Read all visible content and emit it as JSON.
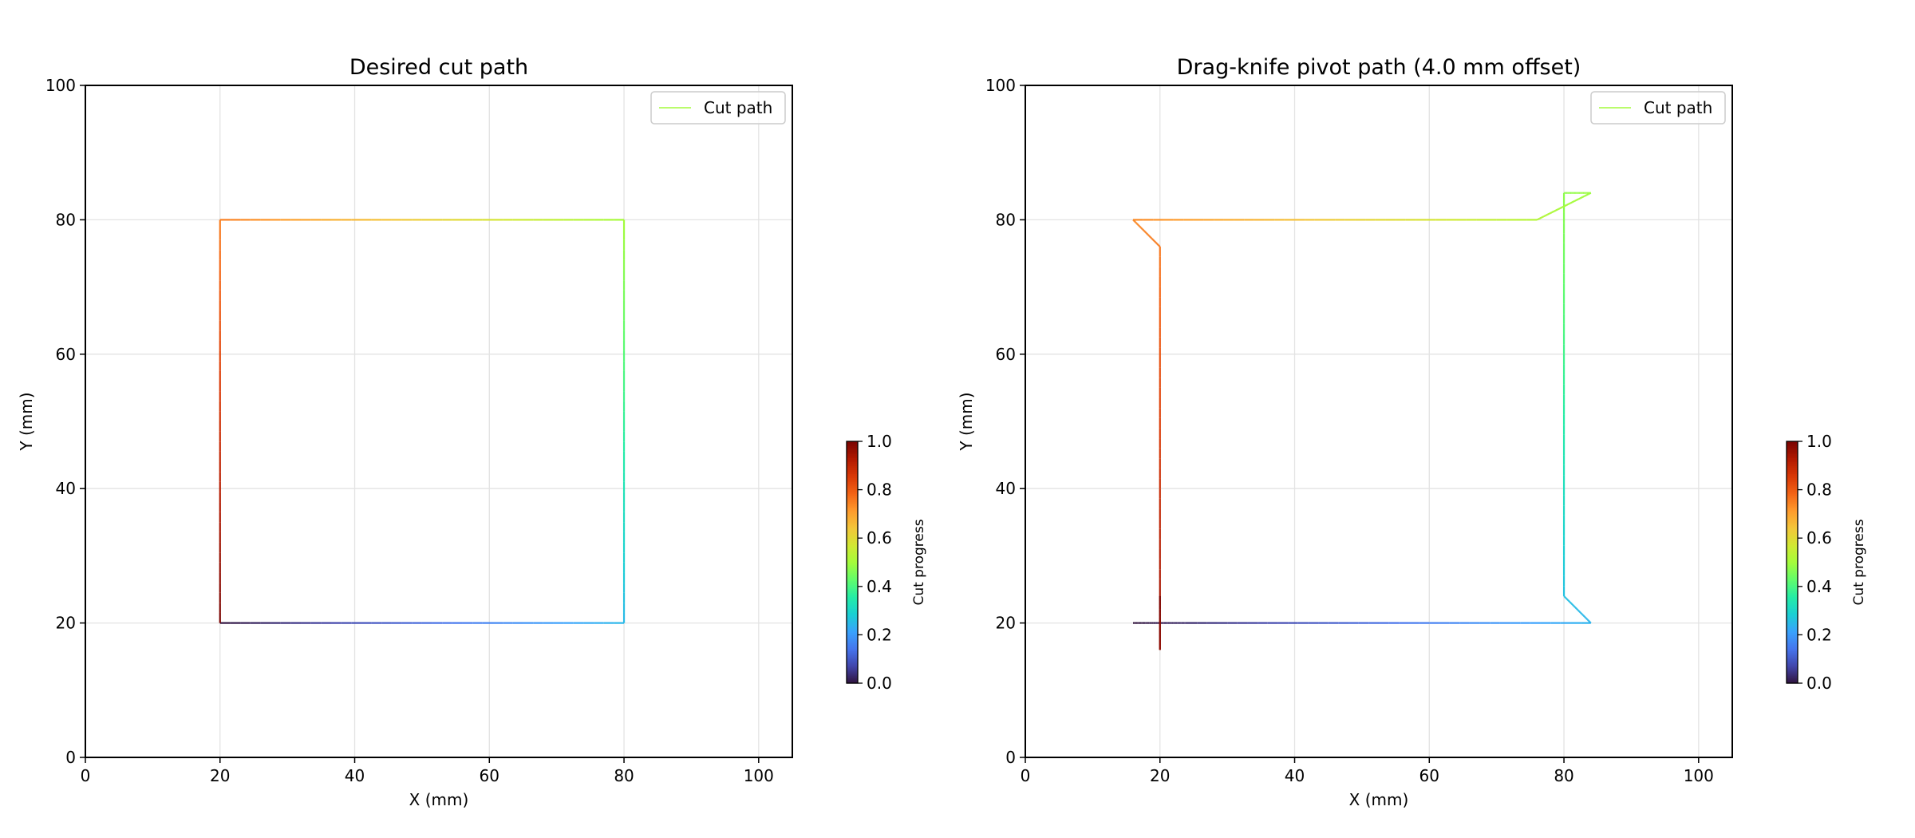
{
  "colormap": [
    "#30123b",
    "#4145ab",
    "#4675ed",
    "#39a2fc",
    "#1bcfd4",
    "#24eca6",
    "#61fc6c",
    "#a4fc3b",
    "#d1e834",
    "#f3c63a",
    "#fe9b2d",
    "#f36315",
    "#d93806",
    "#b11901",
    "#7a0402"
  ],
  "colorbar": {
    "label": "Cut progress",
    "ticks": [
      "0.0",
      "0.2",
      "0.4",
      "0.6",
      "0.8",
      "1.0"
    ]
  },
  "chart_data": [
    {
      "type": "line",
      "title": "Desired cut path",
      "xlabel": "X (mm)",
      "ylabel": "Y (mm)",
      "xlim": [
        0,
        105
      ],
      "ylim": [
        0,
        100
      ],
      "xticks": [
        0,
        20,
        40,
        60,
        80,
        100
      ],
      "yticks": [
        0,
        20,
        40,
        60,
        80,
        100
      ],
      "grid": true,
      "legend": {
        "label": "Cut path",
        "position": "top-right",
        "color": "#a4fc3b"
      },
      "color_by": "cut progress (0 to 1)",
      "x": [
        20,
        80,
        80,
        20,
        20
      ],
      "y": [
        20,
        20,
        80,
        80,
        20
      ]
    },
    {
      "type": "line",
      "title": "Drag-knife pivot path (4.0 mm offset)",
      "xlabel": "X (mm)",
      "ylabel": "Y (mm)",
      "xlim": [
        0,
        105
      ],
      "ylim": [
        0,
        100
      ],
      "xticks": [
        0,
        20,
        40,
        60,
        80,
        100
      ],
      "yticks": [
        0,
        20,
        40,
        60,
        80,
        100
      ],
      "grid": true,
      "legend": {
        "label": "Cut path",
        "position": "top-right",
        "color": "#a4fc3b"
      },
      "color_by": "cut progress (0 to 1)",
      "x": [
        16,
        24,
        84,
        80,
        80,
        84,
        76,
        16,
        20,
        20,
        20
      ],
      "y": [
        20,
        20,
        20,
        24,
        84,
        84,
        80,
        80,
        76,
        16,
        24
      ]
    }
  ]
}
